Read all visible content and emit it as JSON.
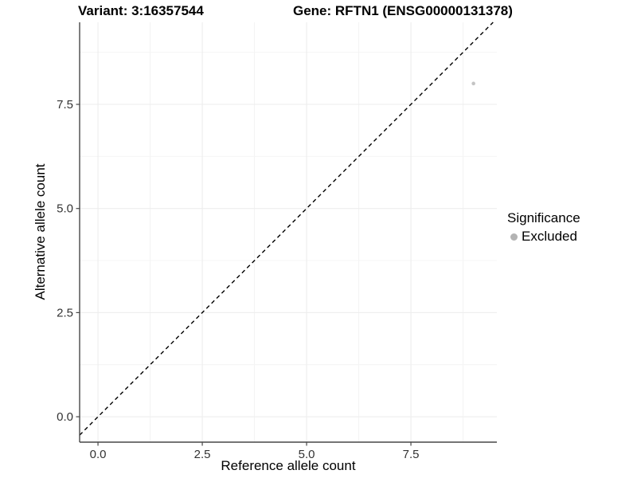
{
  "titles": {
    "variant": "Variant: 3:16357544",
    "gene": "Gene: RFTN1 (ENSG00000131378)"
  },
  "legend": {
    "title": "Significance",
    "items": [
      {
        "label": "Excluded",
        "color": "#b3b3b3"
      }
    ]
  },
  "colors": {
    "background": "#ffffff",
    "grid_major": "#ececec",
    "grid_minor": "#f4f4f4",
    "axis_line": "#474747",
    "tick_text": "#333333",
    "identity_line": "#000000",
    "point": "#c4c4c4"
  },
  "chart_data": {
    "type": "scatter",
    "title_left": "Variant: 3:16357544",
    "title_right": "Gene: RFTN1 (ENSG00000131378)",
    "xlabel": "Reference allele count",
    "ylabel": "Alternative allele count",
    "xlim": [
      -0.44,
      9.56
    ],
    "ylim": [
      -0.61,
      9.47
    ],
    "x_major_ticks": [
      0,
      2.5,
      5,
      7.5
    ],
    "y_major_ticks": [
      0,
      2.5,
      5,
      7.5
    ],
    "x_tick_labels": [
      "0.0",
      "2.5",
      "5.0",
      "7.5"
    ],
    "y_tick_labels": [
      "0.0",
      "2.5",
      "5.0",
      "7.5"
    ],
    "x_minor_ticks": [
      1.25,
      3.75,
      6.25,
      8.75
    ],
    "y_minor_ticks": [
      1.25,
      3.75,
      6.25,
      8.75
    ],
    "grid": "major-and-minor",
    "legend_position": "right",
    "identity_line": {
      "slope": 1,
      "intercept": 0,
      "style": "dashed"
    },
    "series": [
      {
        "name": "Excluded",
        "points": [
          {
            "x": 9,
            "y": 8
          }
        ]
      }
    ]
  }
}
